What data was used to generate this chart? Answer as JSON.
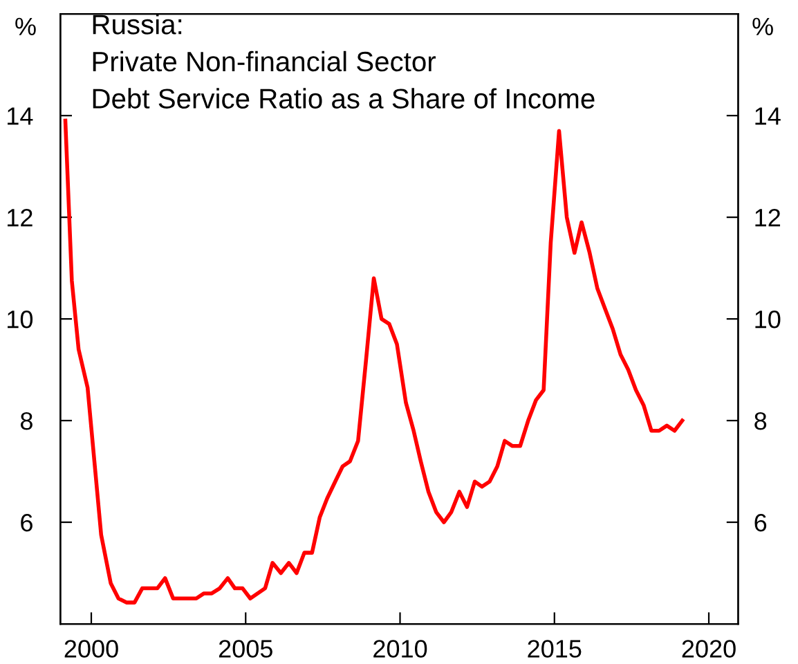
{
  "chart_data": {
    "type": "line",
    "title": "Russia:\nPrivate Non-financial Sector\nDebt Service Ratio as a Share of Income",
    "ylabel": "%",
    "y2label": "%",
    "x": [
      1999.16,
      1999.37,
      1999.59,
      1999.88,
      2000.1,
      2000.32,
      2000.63,
      2000.88,
      2001.15,
      2001.4,
      2001.65,
      2002.14,
      2002.39,
      2002.65,
      2003.4,
      2003.65,
      2003.9,
      2004.16,
      2004.42,
      2004.65,
      2004.9,
      2005.15,
      2005.63,
      2005.87,
      2006.14,
      2006.4,
      2006.65,
      2006.9,
      2007.15,
      2007.4,
      2007.64,
      2007.9,
      2008.14,
      2008.38,
      2008.64,
      2008.9,
      2009.15,
      2009.4,
      2009.65,
      2009.9,
      2010.19,
      2010.44,
      2010.67,
      2010.92,
      2011.17,
      2011.42,
      2011.66,
      2011.92,
      2012.17,
      2012.42,
      2012.65,
      2012.9,
      2013.15,
      2013.39,
      2013.64,
      2013.89,
      2014.15,
      2014.4,
      2014.65,
      2014.88,
      2015.15,
      2015.4,
      2015.65,
      2015.88,
      2016.14,
      2016.39,
      2016.64,
      2016.89,
      2017.14,
      2017.39,
      2017.64,
      2017.89,
      2018.14,
      2018.39,
      2018.64,
      2018.89,
      2019.14
    ],
    "series": [
      {
        "color": "#ff0000",
        "values": [
          13.9,
          10.75,
          9.4,
          8.65,
          7.2,
          5.75,
          4.8,
          4.5,
          4.42,
          4.42,
          4.7,
          4.7,
          4.9,
          4.5,
          4.5,
          4.6,
          4.6,
          4.7,
          4.9,
          4.7,
          4.7,
          4.5,
          4.7,
          5.2,
          5.0,
          5.2,
          5.0,
          5.4,
          5.4,
          6.1,
          6.47,
          6.8,
          7.1,
          7.2,
          7.6,
          9.2,
          10.8,
          10.0,
          9.9,
          9.5,
          8.35,
          7.8,
          7.2,
          6.6,
          6.2,
          6.0,
          6.2,
          6.6,
          6.3,
          6.8,
          6.7,
          6.8,
          7.1,
          7.6,
          7.5,
          7.5,
          8.0,
          8.4,
          8.6,
          11.5,
          13.7,
          12.0,
          11.3,
          11.9,
          11.3,
          10.6,
          10.2,
          9.8,
          9.3,
          9.0,
          8.6,
          8.3,
          7.8,
          7.8,
          7.9,
          7.8,
          8.0
        ]
      }
    ],
    "xlim": [
      1999,
      2020.95
    ],
    "xticks": [
      2000,
      2005,
      2010,
      2015,
      2020
    ],
    "ylim": [
      4,
      16
    ],
    "yticks": [
      6,
      8,
      10,
      12,
      14
    ],
    "y2lim": [
      4,
      16
    ],
    "y2ticks": [
      6,
      8,
      10,
      12,
      14
    ],
    "grid": false,
    "legend": false,
    "marker": "none",
    "line_style": "solid"
  }
}
